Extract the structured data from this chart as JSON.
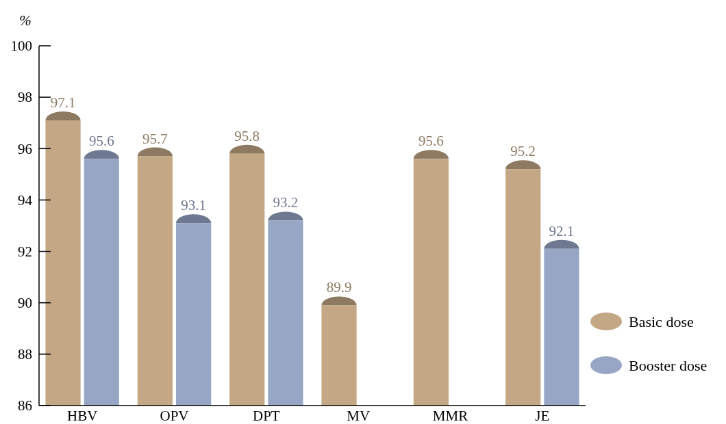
{
  "chart_data": {
    "type": "bar",
    "ylabel": "%",
    "categories": [
      "HBV",
      "OPV",
      "DPT",
      "MV",
      "MMR",
      "JE"
    ],
    "series": [
      {
        "name": "Basic dose",
        "color": "#c4a886",
        "values": [
          97.1,
          95.7,
          95.8,
          89.9,
          95.6,
          95.2
        ]
      },
      {
        "name": "Booster dose",
        "color": "#98a6c6",
        "values": [
          95.6,
          93.1,
          93.2,
          null,
          null,
          92.1
        ]
      }
    ],
    "ylim": [
      86,
      100
    ],
    "yticks": [
      86,
      88,
      90,
      92,
      94,
      96,
      98,
      100
    ],
    "data_labels": true,
    "legend": "right",
    "grid": false
  }
}
